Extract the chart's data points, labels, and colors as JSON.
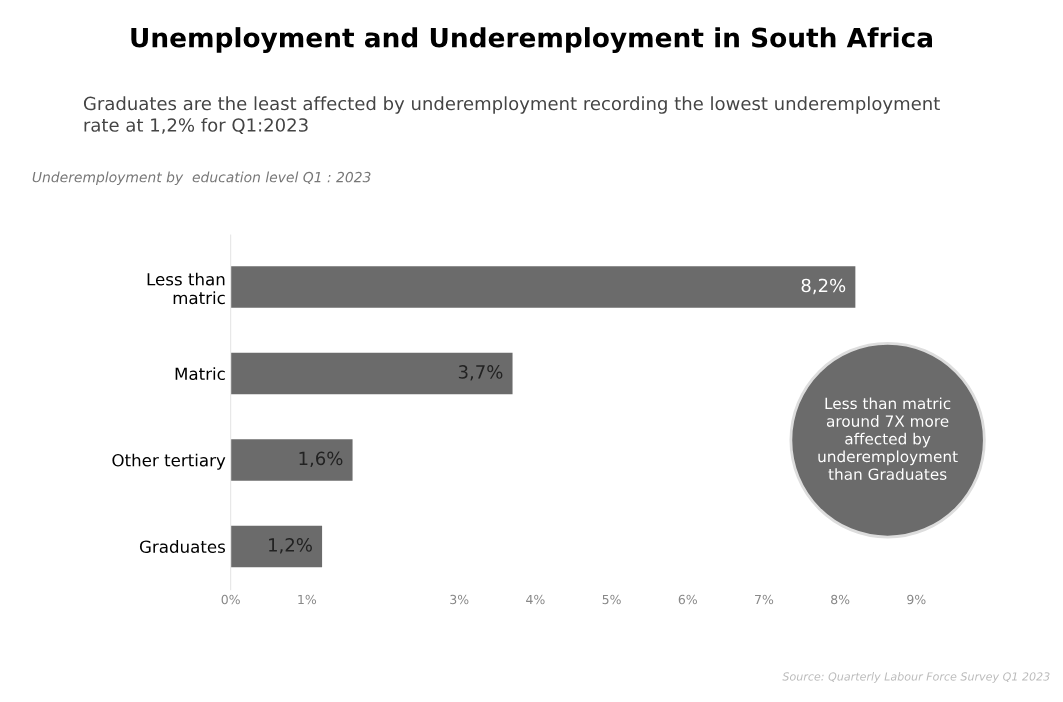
{
  "chart_data": {
    "type": "bar",
    "orientation": "horizontal",
    "title": "Unemployment and Underemployment in South Africa",
    "subtitle": "Graduates are the least affected by underemployment recording the lowest underemployment\nrate at 1,2% for Q1:2023",
    "categories": [
      "Less than\nmatric",
      "Matric",
      "Other tertiary",
      "Graduates"
    ],
    "values": [
      8.2,
      3.7,
      1.6,
      1.2
    ],
    "value_labels": [
      "8,2%",
      "3,7%",
      "1,6%",
      "1,2%"
    ],
    "color": "#6b6b6b",
    "xlim": [
      0,
      9
    ],
    "xticks": [
      {
        "value": 0,
        "label": "0%"
      },
      {
        "value": 1,
        "label": "1%"
      },
      {
        "value": 3,
        "label": "3%"
      },
      {
        "value": 4,
        "label": "4%"
      },
      {
        "value": 5,
        "label": "5%"
      },
      {
        "value": 6,
        "label": "6%"
      },
      {
        "value": 7,
        "label": "7%"
      },
      {
        "value": 8,
        "label": "8%"
      },
      {
        "value": 9,
        "label": "9%"
      }
    ],
    "grid": false,
    "legend": false,
    "annotations": [
      "Underemployment by  education level Q1 : 2023",
      "Less than matric\naround 7X more\naffected by\nunderemployment\nthan Graduates",
      "Source: Quarterly Labour Force Survey Q1 2023"
    ]
  }
}
